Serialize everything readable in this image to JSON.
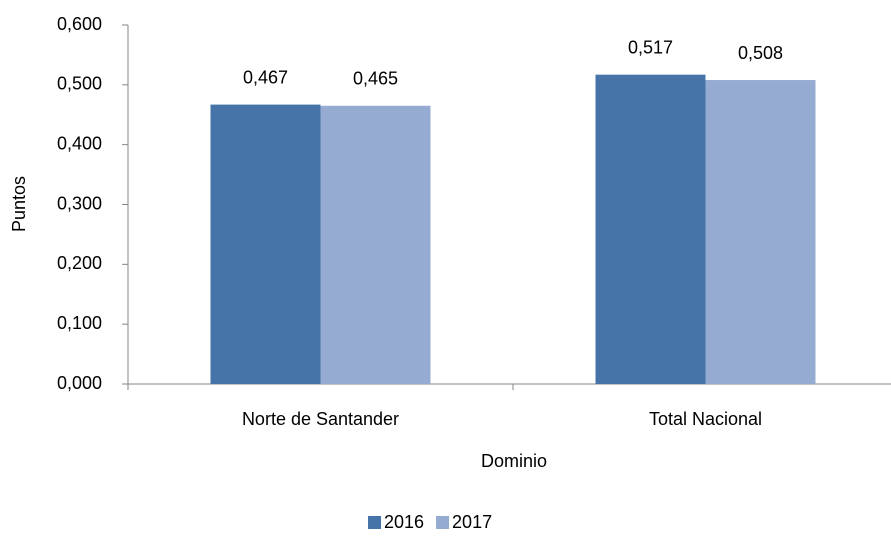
{
  "chart_data": {
    "type": "bar",
    "x_label": "Dominio",
    "y_label": "Puntos",
    "categories": [
      "Norte de Santander",
      "Total Nacional"
    ],
    "series": [
      {
        "name": "2016",
        "color": "#4674a8",
        "values": [
          0.467,
          0.517
        ],
        "value_labels": [
          "0,467",
          "0,517"
        ]
      },
      {
        "name": "2017",
        "color": "#95abd2",
        "values": [
          0.465,
          0.508
        ],
        "value_labels": [
          "0,465",
          "0,508"
        ]
      }
    ],
    "ylim": [
      0,
      0.6
    ],
    "yticks": [
      {
        "value": 0,
        "label": "0,000"
      },
      {
        "value": 0.1,
        "label": "0,100"
      },
      {
        "value": 0.2,
        "label": "0,200"
      },
      {
        "value": 0.3,
        "label": "0,300"
      },
      {
        "value": 0.4,
        "label": "0,400"
      },
      {
        "value": 0.5,
        "label": "0,500"
      },
      {
        "value": 0.6,
        "label": "0,600"
      }
    ],
    "grid": false,
    "legend": "bottom"
  }
}
